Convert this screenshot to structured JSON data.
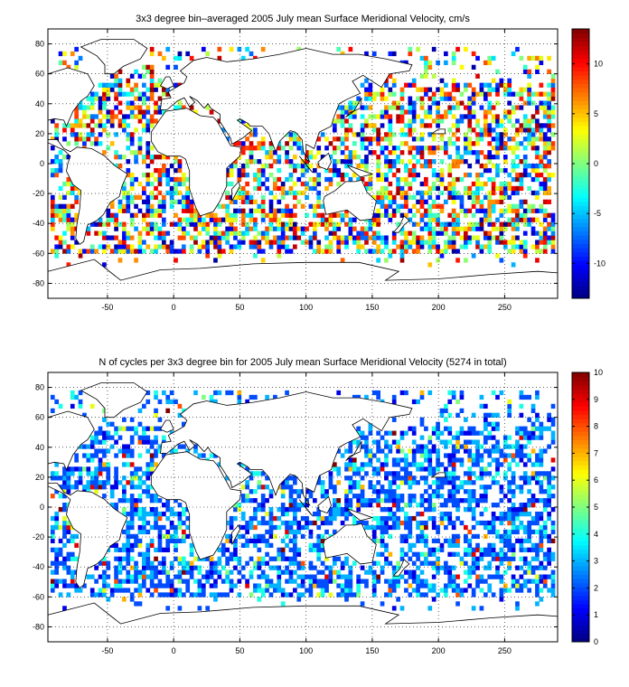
{
  "chart_data": [
    {
      "type": "heatmap",
      "title": "3x3 degree bin–averaged 2005 July mean Surface Meridional Velocity, cm/s",
      "xlim": [
        -95,
        290
      ],
      "ylim": [
        -90,
        90
      ],
      "xticks": [
        -50,
        0,
        50,
        100,
        150,
        200,
        250
      ],
      "yticks": [
        -80,
        -60,
        -40,
        -20,
        0,
        20,
        40,
        60,
        80
      ],
      "grid": true,
      "colorbar": {
        "colormap": "jet",
        "range": [
          -13.5,
          13.5
        ],
        "ticks": [
          -10,
          -5,
          0,
          5,
          10
        ]
      },
      "bin_size_deg": 3
    },
    {
      "type": "heatmap",
      "title": "N of cycles per 3x3 degree bin for 2005 July mean Surface Meridional Velocity (5274 in total)",
      "xlim": [
        -95,
        290
      ],
      "ylim": [
        -90,
        90
      ],
      "xticks": [
        -50,
        0,
        50,
        100,
        150,
        200,
        250
      ],
      "yticks": [
        -80,
        -60,
        -40,
        -20,
        0,
        20,
        40,
        60,
        80
      ],
      "grid": true,
      "colorbar": {
        "colormap": "jet",
        "range": [
          0,
          10
        ],
        "ticks": [
          0,
          1,
          2,
          3,
          4,
          5,
          6,
          7,
          8,
          9,
          10
        ]
      },
      "bin_size_deg": 3
    }
  ]
}
